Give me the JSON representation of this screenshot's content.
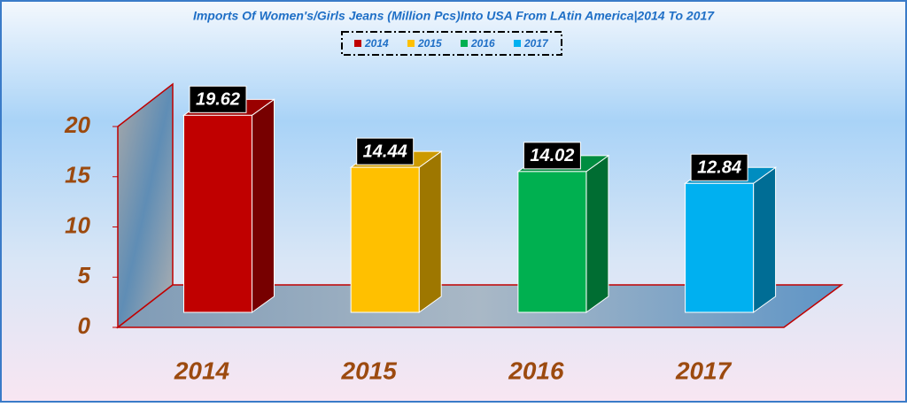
{
  "chart_data": {
    "type": "bar3d",
    "title": "Imports Of Women's/Girls Jeans (Million Pcs)Into USA From LAtin America|2014 To 2017",
    "categories": [
      "2014",
      "2015",
      "2016",
      "2017"
    ],
    "values": [
      19.62,
      14.44,
      14.02,
      12.84
    ],
    "colors": [
      "#c00000",
      "#ffc000",
      "#00b050",
      "#00b0f0"
    ],
    "ylim": [
      0,
      20
    ],
    "yticks": [
      0,
      5,
      10,
      15,
      20
    ]
  }
}
